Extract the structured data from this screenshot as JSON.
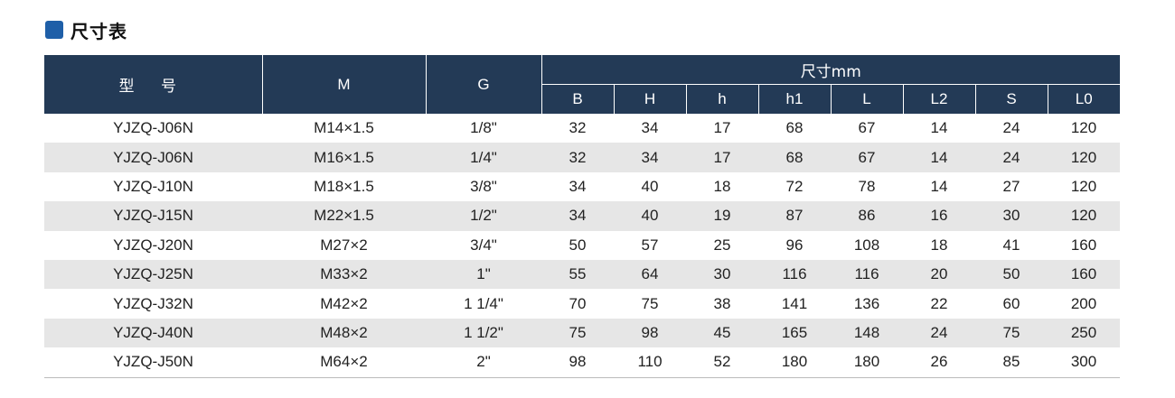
{
  "section": {
    "title": "尺寸表",
    "icon": "blue-square-icon",
    "accent": "#1f5fa8"
  },
  "table": {
    "header_bg": "#233a56",
    "col_model": "型 号",
    "col_m": "M",
    "col_g": "G",
    "dims_label": "尺寸mm",
    "dims": [
      "B",
      "H",
      "h",
      "h1",
      "L",
      "L2",
      "S",
      "L0"
    ],
    "rows": [
      [
        "YJZQ-J06N",
        "M14×1.5",
        "1/8\"",
        "32",
        "34",
        "17",
        "68",
        "67",
        "14",
        "24",
        "120"
      ],
      [
        "YJZQ-J06N",
        "M16×1.5",
        "1/4\"",
        "32",
        "34",
        "17",
        "68",
        "67",
        "14",
        "24",
        "120"
      ],
      [
        "YJZQ-J10N",
        "M18×1.5",
        "3/8\"",
        "34",
        "40",
        "18",
        "72",
        "78",
        "14",
        "27",
        "120"
      ],
      [
        "YJZQ-J15N",
        "M22×1.5",
        "1/2\"",
        "34",
        "40",
        "19",
        "87",
        "86",
        "16",
        "30",
        "120"
      ],
      [
        "YJZQ-J20N",
        "M27×2",
        "3/4\"",
        "50",
        "57",
        "25",
        "96",
        "108",
        "18",
        "41",
        "160"
      ],
      [
        "YJZQ-J25N",
        "M33×2",
        "1\"",
        "55",
        "64",
        "30",
        "116",
        "116",
        "20",
        "50",
        "160"
      ],
      [
        "YJZQ-J32N",
        "M42×2",
        "1 1/4\"",
        "70",
        "75",
        "38",
        "141",
        "136",
        "22",
        "60",
        "200"
      ],
      [
        "YJZQ-J40N",
        "M48×2",
        "1 1/2\"",
        "75",
        "98",
        "45",
        "165",
        "148",
        "24",
        "75",
        "250"
      ],
      [
        "YJZQ-J50N",
        "M64×2",
        "2\"",
        "98",
        "110",
        "52",
        "180",
        "180",
        "26",
        "85",
        "300"
      ]
    ]
  }
}
